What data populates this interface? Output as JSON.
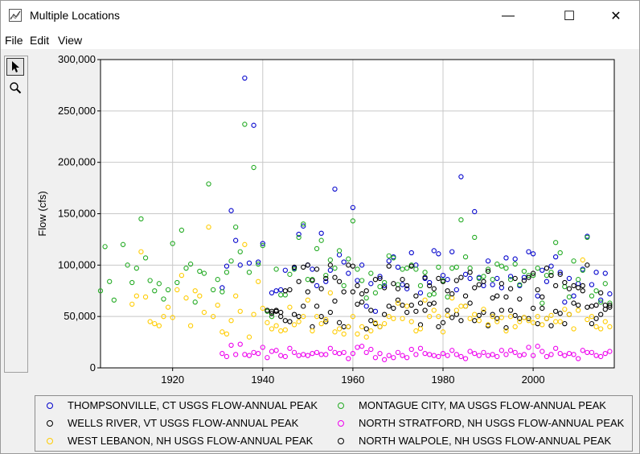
{
  "window": {
    "title": "Multiple Locations",
    "minimize": "—",
    "maximize": "☐",
    "close": "✕"
  },
  "menu": [
    "File",
    "Edit",
    "View"
  ],
  "tools": [
    {
      "icon": "arrow-pointer-icon"
    },
    {
      "icon": "magnifier-icon"
    }
  ],
  "chart_data": {
    "type": "scatter",
    "xlabel": "",
    "ylabel": "Flow (cfs)",
    "xlim": [
      1904,
      2018
    ],
    "ylim": [
      0,
      300000
    ],
    "x_ticks": [
      1920,
      1940,
      1960,
      1980,
      2000
    ],
    "y_ticks": [
      0,
      50000,
      100000,
      150000,
      200000,
      250000,
      300000
    ],
    "y_tick_labels": [
      "0",
      "50,000",
      "100,000",
      "150,000",
      "200,000",
      "250,000",
      "300,000"
    ],
    "grid": true,
    "legend_position": "bottom",
    "series": [
      {
        "name": "THOMPSONVILLE, CT USGS FLOW-ANNUAL PEAK",
        "color": "#0000cc",
        "x": [
          1931,
          1932,
          1933,
          1934,
          1935,
          1936,
          1937,
          1938,
          1939,
          1940,
          1942,
          1943,
          1944,
          1945,
          1947,
          1948,
          1949,
          1950,
          1951,
          1952,
          1953,
          1954,
          1955,
          1956,
          1957,
          1958,
          1959,
          1960,
          1961,
          1962,
          1963,
          1964,
          1965,
          1966,
          1967,
          1968,
          1969,
          1970,
          1971,
          1972,
          1973,
          1974,
          1975,
          1976,
          1977,
          1978,
          1979,
          1980,
          1981,
          1982,
          1983,
          1984,
          1985,
          1986,
          1987,
          1988,
          1989,
          1990,
          1991,
          1992,
          1993,
          1994,
          1995,
          1996,
          1997,
          1998,
          1999,
          2000,
          2001,
          2002,
          2003,
          2004,
          2005,
          2006,
          2007,
          2008,
          2009,
          2010,
          2011,
          2012,
          2013,
          2014,
          2015,
          2016,
          2017
        ],
        "y": [
          78000,
          99000,
          153000,
          124000,
          100000,
          282000,
          102000,
          236000,
          103000,
          121000,
          73000,
          75000,
          76000,
          95000,
          97000,
          130000,
          138000,
          100000,
          96000,
          80000,
          131000,
          84000,
          95000,
          174000,
          110000,
          103000,
          92000,
          156000,
          85000,
          100000,
          60000,
          82000,
          55000,
          89000,
          80000,
          104000,
          108000,
          98000,
          81000,
          77000,
          112000,
          100000,
          73000,
          87000,
          83000,
          114000,
          111000,
          90000,
          86000,
          113000,
          76000,
          186000,
          91000,
          87000,
          152000,
          88000,
          80000,
          104000,
          81000,
          87000,
          78000,
          107000,
          89000,
          106000,
          80000,
          88000,
          113000,
          111000,
          70000,
          95000,
          84000,
          99000,
          108000,
          93000,
          64000,
          87000,
          70000,
          82000,
          96000,
          128000,
          81000,
          93000,
          66000,
          92000,
          72000
        ]
      },
      {
        "name": "MONTAGUE CITY, MA USGS FLOW-ANNUAL PEAK",
        "color": "#22aa22",
        "x": [
          1904,
          1905,
          1906,
          1907,
          1909,
          1910,
          1911,
          1912,
          1913,
          1914,
          1915,
          1916,
          1917,
          1918,
          1919,
          1920,
          1921,
          1922,
          1923,
          1924,
          1925,
          1926,
          1927,
          1928,
          1929,
          1930,
          1931,
          1932,
          1933,
          1934,
          1935,
          1936,
          1937,
          1938,
          1939,
          1940,
          1941,
          1942,
          1943,
          1944,
          1945,
          1946,
          1947,
          1948,
          1949,
          1950,
          1951,
          1952,
          1953,
          1954,
          1955,
          1956,
          1957,
          1958,
          1959,
          1960,
          1961,
          1962,
          1963,
          1964,
          1965,
          1966,
          1967,
          1968,
          1969,
          1970,
          1971,
          1972,
          1973,
          1974,
          1975,
          1976,
          1977,
          1978,
          1979,
          1980,
          1981,
          1982,
          1983,
          1984,
          1985,
          1986,
          1987,
          1988,
          1989,
          1990,
          1991,
          1992,
          1993,
          1994,
          1995,
          1996,
          1997,
          1998,
          1999,
          2000,
          2001,
          2002,
          2003,
          2004,
          2005,
          2006,
          2007,
          2008,
          2009,
          2010,
          2011,
          2012,
          2013,
          2014,
          2015,
          2016,
          2017
        ],
        "y": [
          75000,
          118000,
          84000,
          66000,
          120000,
          100000,
          83000,
          97000,
          145000,
          107000,
          85000,
          75000,
          82000,
          67000,
          76000,
          121000,
          83000,
          134000,
          97000,
          101000,
          64000,
          94000,
          92000,
          179000,
          76000,
          86000,
          74000,
          93000,
          104000,
          137000,
          113000,
          237000,
          93000,
          195000,
          101000,
          119000,
          55000,
          50000,
          96000,
          71000,
          71000,
          91000,
          96000,
          127000,
          140000,
          86000,
          86000,
          116000,
          124000,
          90000,
          105000,
          97000,
          114000,
          80000,
          106000,
          143000,
          96000,
          85000,
          68000,
          92000,
          73000,
          79000,
          83000,
          109000,
          107000,
          81000,
          96000,
          97000,
          100000,
          96000,
          80000,
          93000,
          71000,
          72000,
          98000,
          85000,
          69000,
          97000,
          98000,
          144000,
          108000,
          97000,
          127000,
          87000,
          89000,
          96000,
          86000,
          101000,
          99000,
          97000,
          86000,
          101000,
          81000,
          94000,
          90000,
          90000,
          97000,
          63000,
          90000,
          93000,
          122000,
          112000,
          79000,
          69000,
          104000,
          86000,
          95000,
          127000,
          70000,
          75000,
          64000,
          82000,
          63000
        ]
      },
      {
        "name": "WELLS RIVER, VT USGS FLOW-ANNUAL PEAK",
        "color": "#000000",
        "x": [
          1941,
          1942,
          1943,
          1944,
          1945,
          1946,
          1947,
          1948,
          1949,
          1950,
          1951,
          1952,
          1953,
          1954,
          1955,
          1956,
          1957,
          1958,
          1959,
          1960,
          1961,
          1962,
          1963,
          1964,
          1965,
          1966,
          1967,
          1968,
          1969,
          1970,
          1971,
          1972,
          1973,
          1974,
          1975,
          1976,
          1977,
          1978,
          1979,
          1980,
          1981,
          1982,
          1983,
          1984,
          1985,
          1986,
          1987,
          1988,
          1989,
          1990,
          1991,
          1992,
          1993,
          1994,
          1995,
          1996,
          1997,
          1998,
          1999,
          2000,
          2001,
          2002,
          2003,
          2004,
          2005,
          2006,
          2007,
          2008,
          2009,
          2010,
          2011,
          2012,
          2013,
          2014,
          2015,
          2016,
          2017
        ],
        "y": [
          56000,
          55000,
          56000,
          50000,
          46000,
          45000,
          52000,
          50000,
          60000,
          74000,
          40000,
          60000,
          50000,
          45000,
          54000,
          65000,
          44000,
          40000,
          40000,
          74000,
          62000,
          64000,
          38000,
          46000,
          43000,
          40000,
          52000,
          60000,
          58000,
          66000,
          61000,
          54000,
          61000,
          55000,
          42000,
          56000,
          62000,
          63000,
          40000,
          44000,
          56000,
          49000,
          52000,
          46000,
          60000,
          63000,
          46000,
          51000,
          54000,
          41000,
          52000,
          48000,
          56000,
          39000,
          56000,
          51000,
          48000,
          49000,
          48000,
          58000,
          43000,
          58000,
          48000,
          41000,
          55000,
          53000,
          43000,
          52000,
          63000,
          61000,
          75000,
          59000,
          43000,
          48000,
          52000,
          57000,
          59000
        ]
      },
      {
        "name": "NORTH STRATFORD, NH USGS FLOW-ANNUAL PEAK",
        "color": "#ee00ee",
        "x": [
          1931,
          1932,
          1933,
          1934,
          1935,
          1936,
          1937,
          1938,
          1939,
          1940,
          1941,
          1942,
          1943,
          1944,
          1945,
          1946,
          1947,
          1948,
          1949,
          1950,
          1951,
          1952,
          1953,
          1954,
          1955,
          1956,
          1957,
          1958,
          1959,
          1960,
          1961,
          1962,
          1963,
          1964,
          1965,
          1966,
          1967,
          1968,
          1969,
          1970,
          1971,
          1972,
          1973,
          1974,
          1975,
          1976,
          1977,
          1978,
          1979,
          1980,
          1981,
          1982,
          1983,
          1984,
          1985,
          1986,
          1987,
          1988,
          1989,
          1990,
          1991,
          1992,
          1993,
          1994,
          1995,
          1996,
          1997,
          1998,
          1999,
          2000,
          2001,
          2002,
          2003,
          2004,
          2005,
          2006,
          2007,
          2008,
          2009,
          2010,
          2011,
          2012,
          2013,
          2014,
          2015,
          2016,
          2017
        ],
        "y": [
          14000,
          11000,
          22000,
          13000,
          23000,
          13000,
          12000,
          15000,
          14000,
          20000,
          10000,
          16000,
          17000,
          12000,
          11000,
          19000,
          15000,
          12000,
          13000,
          12000,
          14000,
          15000,
          13000,
          13000,
          19000,
          15000,
          14000,
          15000,
          9000,
          14000,
          20000,
          21000,
          15000,
          18000,
          10000,
          14000,
          8000,
          12000,
          10000,
          15000,
          12000,
          10000,
          18000,
          13000,
          19000,
          14000,
          13000,
          12000,
          11000,
          14000,
          12000,
          17000,
          13000,
          11000,
          9000,
          16000,
          14000,
          12000,
          15000,
          12000,
          13000,
          11000,
          17000,
          13000,
          17000,
          15000,
          12000,
          13000,
          20000,
          12000,
          21000,
          16000,
          11000,
          13000,
          19000,
          14000,
          12000,
          14000,
          13000,
          9000,
          17000,
          15000,
          15000,
          12000,
          11000,
          14000,
          16000
        ]
      },
      {
        "name": "WEST LEBANON, NH USGS FLOW-ANNUAL PEAK",
        "color": "#ffcc00",
        "x": [
          1911,
          1912,
          1913,
          1914,
          1915,
          1916,
          1917,
          1918,
          1919,
          1920,
          1921,
          1922,
          1923,
          1924,
          1925,
          1926,
          1927,
          1928,
          1929,
          1930,
          1931,
          1932,
          1933,
          1934,
          1935,
          1936,
          1937,
          1938,
          1939,
          1940,
          1941,
          1942,
          1943,
          1944,
          1945,
          1946,
          1947,
          1948,
          1949,
          1950,
          1951,
          1952,
          1953,
          1954,
          1955,
          1956,
          1957,
          1958,
          1959,
          1960,
          1961,
          1962,
          1963,
          1964,
          1965,
          1966,
          1967,
          1968,
          1969,
          1970,
          1971,
          1972,
          1973,
          1974,
          1975,
          1976,
          1977,
          1978,
          1979,
          1980,
          1981,
          1982,
          1983,
          1984,
          1985,
          1986,
          1987,
          1988,
          1989,
          1990,
          1991,
          1992,
          1993,
          1994,
          1995,
          1996,
          1997,
          1998,
          1999,
          2000,
          2001,
          2002,
          2003,
          2004,
          2005,
          2006,
          2007,
          2008,
          2009,
          2010,
          2011,
          2012,
          2013,
          2014,
          2015,
          2016,
          2017
        ],
        "y": [
          62000,
          70000,
          113000,
          69000,
          45000,
          43000,
          41000,
          50000,
          59000,
          49000,
          76000,
          90000,
          68000,
          41000,
          75000,
          70000,
          54000,
          137000,
          50000,
          61000,
          35000,
          33000,
          46000,
          70000,
          55000,
          120000,
          30000,
          52000,
          84000,
          58000,
          44000,
          38000,
          41000,
          36000,
          37000,
          59000,
          42000,
          45000,
          50000,
          66000,
          36000,
          50000,
          43000,
          47000,
          73000,
          35000,
          38000,
          33000,
          40000,
          50000,
          33000,
          40000,
          30000,
          36000,
          44000,
          40000,
          43000,
          50000,
          48000,
          63000,
          48000,
          60000,
          45000,
          36000,
          38000,
          66000,
          50000,
          56000,
          50000,
          35000,
          51000,
          68000,
          56000,
          60000,
          60000,
          48000,
          52000,
          46000,
          57000,
          42000,
          50000,
          45000,
          49000,
          36000,
          50000,
          40000,
          45000,
          49000,
          46000,
          44000,
          50000,
          42000,
          48000,
          51000,
          45000,
          45000,
          57000,
          52000,
          38000,
          56000,
          105000,
          47000,
          50000,
          40000,
          38000,
          45000,
          40000
        ]
      },
      {
        "name": "NORTH WALPOLE, NH USGS FLOW-ANNUAL PEAK",
        "color": "#000000",
        "x": [
          1942,
          1943,
          1944,
          1945,
          1946,
          1947,
          1948,
          1949,
          1950,
          1951,
          1952,
          1953,
          1954,
          1955,
          1956,
          1957,
          1958,
          1959,
          1960,
          1961,
          1962,
          1963,
          1964,
          1965,
          1966,
          1967,
          1968,
          1969,
          1970,
          1971,
          1972,
          1973,
          1974,
          1975,
          1976,
          1977,
          1978,
          1979,
          1980,
          1981,
          1982,
          1983,
          1984,
          1985,
          1986,
          1987,
          1988,
          1989,
          1990,
          1991,
          1992,
          1993,
          1994,
          1995,
          1996,
          1997,
          1998,
          1999,
          2000,
          2001,
          2002,
          2003,
          2004,
          2005,
          2006,
          2007,
          2008,
          2009,
          2010,
          2011,
          2012,
          2013,
          2014,
          2015,
          2016,
          2017
        ],
        "y": [
          53000,
          55000,
          54000,
          75000,
          76000,
          98000,
          84000,
          98000,
          100000,
          85000,
          96000,
          77000,
          87000,
          100000,
          88000,
          84000,
          74000,
          100000,
          99000,
          80000,
          72000,
          75000,
          56000,
          86000,
          87000,
          78000,
          99000,
          82000,
          77000,
          86000,
          80000,
          99000,
          70000,
          63000,
          88000,
          80000,
          77000,
          87000,
          84000,
          75000,
          72000,
          85000,
          88000,
          70000,
          93000,
          78000,
          81000,
          84000,
          94000,
          68000,
          70000,
          82000,
          69000,
          77000,
          87000,
          67000,
          85000,
          88000,
          92000,
          76000,
          69000,
          97000,
          90000,
          80000,
          91000,
          83000,
          77000,
          80000,
          78000,
          80000,
          100000,
          60000,
          61000,
          73000,
          61000,
          61000
        ]
      }
    ]
  }
}
